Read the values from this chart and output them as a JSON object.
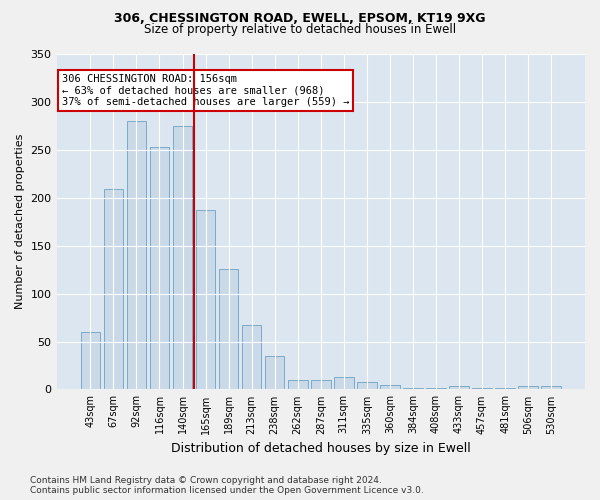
{
  "title1": "306, CHESSINGTON ROAD, EWELL, EPSOM, KT19 9XG",
  "title2": "Size of property relative to detached houses in Ewell",
  "xlabel": "Distribution of detached houses by size in Ewell",
  "ylabel": "Number of detached properties",
  "categories": [
    "43sqm",
    "67sqm",
    "92sqm",
    "116sqm",
    "140sqm",
    "165sqm",
    "189sqm",
    "213sqm",
    "238sqm",
    "262sqm",
    "287sqm",
    "311sqm",
    "335sqm",
    "360sqm",
    "384sqm",
    "408sqm",
    "433sqm",
    "457sqm",
    "481sqm",
    "506sqm",
    "530sqm"
  ],
  "values": [
    60,
    209,
    280,
    253,
    275,
    187,
    126,
    67,
    35,
    10,
    10,
    13,
    8,
    5,
    2,
    1,
    4,
    1,
    1,
    4,
    4
  ],
  "bar_color": "#c9d9e8",
  "bar_edge_color": "#7baac9",
  "vline_x": 4.5,
  "vline_color": "#cc0000",
  "annotation_text": "306 CHESSINGTON ROAD: 156sqm\n← 63% of detached houses are smaller (968)\n37% of semi-detached houses are larger (559) →",
  "annotation_box_color": "#ffffff",
  "annotation_box_edge": "#cc0000",
  "ylim": [
    0,
    350
  ],
  "yticks": [
    0,
    50,
    100,
    150,
    200,
    250,
    300,
    350
  ],
  "footer": "Contains HM Land Registry data © Crown copyright and database right 2024.\nContains public sector information licensed under the Open Government Licence v3.0.",
  "bg_color": "#dce6f0",
  "plot_bg_color": "#dce6f0"
}
